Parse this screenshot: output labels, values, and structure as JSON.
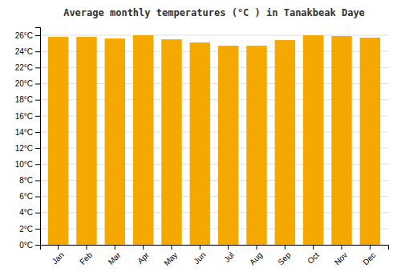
{
  "chart_data": {
    "type": "bar",
    "title": "Average monthly temperatures (°C ) in Tanakbeak Daye",
    "categories": [
      "Jan",
      "Feb",
      "Mar",
      "Apr",
      "May",
      "Jun",
      "Jul",
      "Aug",
      "Sep",
      "Oct",
      "Nov",
      "Dec"
    ],
    "values": [
      25.8,
      25.8,
      25.6,
      26.0,
      25.5,
      25.1,
      24.7,
      24.7,
      25.4,
      26.0,
      25.9,
      25.7
    ],
    "color": "#F5A800",
    "ylim": [
      0,
      27
    ],
    "yticks": [
      {
        "value": 0,
        "label": "0°C"
      },
      {
        "value": 2,
        "label": "2°C"
      },
      {
        "value": 4,
        "label": "4°C"
      },
      {
        "value": 6,
        "label": "6°C"
      },
      {
        "value": 8,
        "label": "8°C"
      },
      {
        "value": 10,
        "label": "10°C"
      },
      {
        "value": 12,
        "label": "12°C"
      },
      {
        "value": 14,
        "label": "14°C"
      },
      {
        "value": 16,
        "label": "16°C"
      },
      {
        "value": 18,
        "label": "18°C"
      },
      {
        "value": 20,
        "label": "20°C"
      },
      {
        "value": 22,
        "label": "22°C"
      },
      {
        "value": 24,
        "label": "24°C"
      },
      {
        "value": 26,
        "label": "26°C"
      }
    ],
    "grid": true
  }
}
